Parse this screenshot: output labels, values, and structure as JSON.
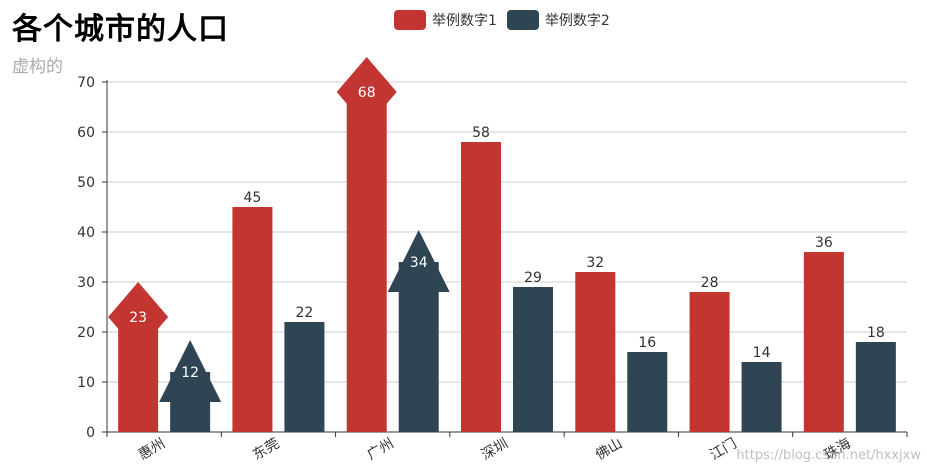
{
  "chart_data": {
    "type": "bar",
    "title": "各个城市的人口",
    "subtitle": "虚构的",
    "categories": [
      "惠州",
      "东莞",
      "广州",
      "深圳",
      "佛山",
      "江门",
      "珠海"
    ],
    "series": [
      {
        "name": "举例数字1",
        "color": "#c23531",
        "values": [
          23,
          45,
          68,
          58,
          32,
          28,
          36
        ],
        "marked_max": 68,
        "marked_min": 23
      },
      {
        "name": "举例数字2",
        "color": "#2f4554",
        "values": [
          12,
          22,
          34,
          29,
          16,
          14,
          18
        ],
        "marked_max": 34,
        "marked_min": 12
      }
    ],
    "yticks": [
      0,
      10,
      20,
      30,
      40,
      50,
      60,
      70
    ],
    "ylim": [
      0,
      70
    ],
    "grid": true,
    "legend_position": "top-center"
  },
  "watermark": "https://blog.csdn.net/hxxjxw"
}
